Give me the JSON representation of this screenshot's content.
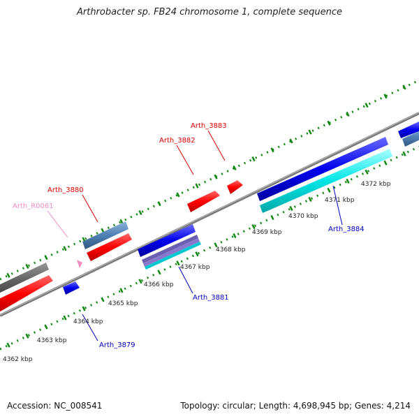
{
  "title": "Arthrobacter sp. FB24 chromosome 1, complete sequence",
  "footer": {
    "accession": "Accession: NC_008541",
    "summary": "Topology: circular; Length: 4,698,945 bp; Genes: 4,214"
  },
  "scale_labels": [
    "4362 kbp",
    "4363 kbp",
    "4364 kbp",
    "4365 kbp",
    "4366 kbp",
    "4367 kbp",
    "4368 kbp",
    "4369 kbp",
    "4370 kbp",
    "4371 kbp",
    "4372 kbp"
  ],
  "gene_labels": [
    {
      "name": "Arth_3883",
      "color": "#dd0000"
    },
    {
      "name": "Arth_3882",
      "color": "#dd0000"
    },
    {
      "name": "Arth_3880",
      "color": "#dd0000"
    },
    {
      "name": "Arth_R0061",
      "color": "#f08cc0"
    },
    {
      "name": "Arth_3884",
      "color": "#0000bb"
    },
    {
      "name": "Arth_3881",
      "color": "#0000bb"
    },
    {
      "name": "Arth_3879",
      "color": "#0000bb"
    }
  ],
  "colors": {
    "cds_forward": "#ff0000",
    "cds_reverse": "#0000ee",
    "cyan_feature": "#00e5e5",
    "steelblue_feature": "#4f7fb3",
    "gray_feature": "#666666",
    "backbone": "#8a8a8a",
    "tick_green": "#118811",
    "rna_pink": "#f08cc0"
  }
}
